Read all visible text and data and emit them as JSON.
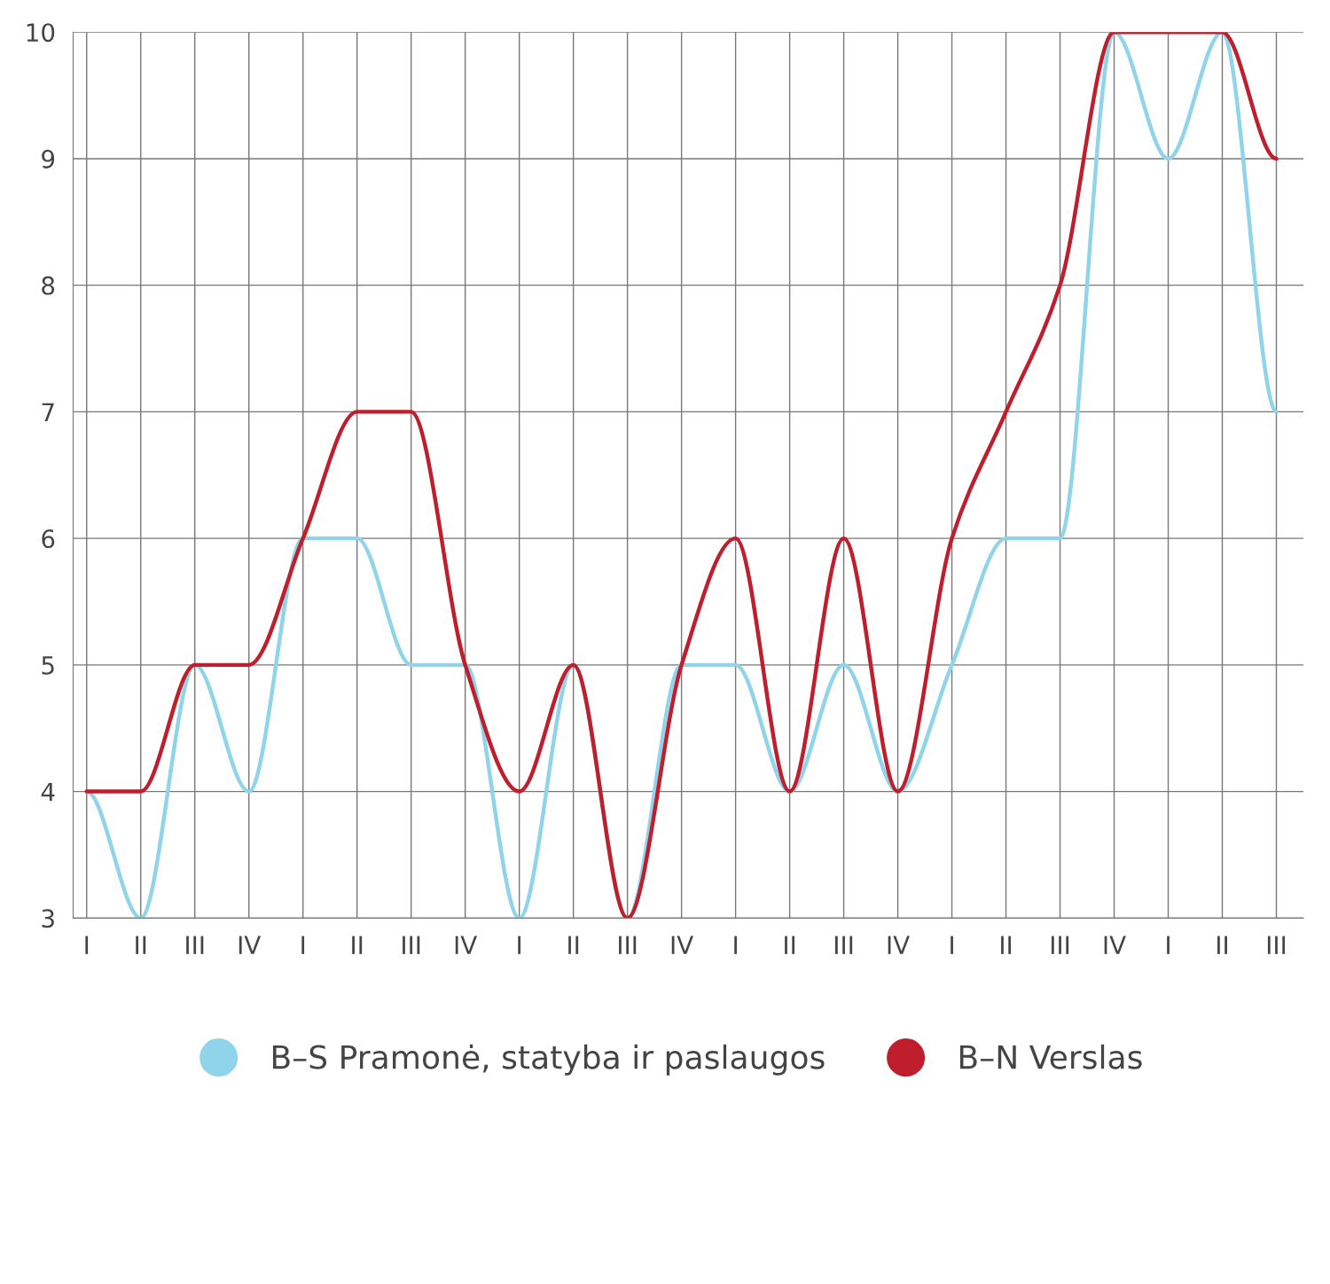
{
  "chart_data": {
    "type": "line",
    "categories": [
      "I",
      "II",
      "III",
      "IV",
      "I",
      "II",
      "III",
      "IV",
      "I",
      "II",
      "III",
      "IV",
      "I",
      "II",
      "III",
      "IV",
      "I",
      "II",
      "III",
      "IV",
      "I",
      "II",
      "III"
    ],
    "series": [
      {
        "name": "B–S Pramonė, statyba ir paslaugos",
        "color": "#8fd4ea",
        "values": [
          4,
          3,
          5,
          4,
          6,
          6,
          5,
          5,
          3,
          5,
          3,
          5,
          5,
          4,
          5,
          4,
          5,
          6,
          6,
          10,
          9,
          10,
          7
        ]
      },
      {
        "name": "B–N Verslas",
        "color": "#bf1e2d",
        "values": [
          4,
          4,
          5,
          5,
          6,
          7,
          7,
          5,
          4,
          5,
          3,
          5,
          6,
          4,
          6,
          4,
          6,
          7,
          8,
          10,
          10,
          10,
          9
        ]
      }
    ],
    "ylim": [
      3,
      10
    ],
    "yticks": [
      3,
      4,
      5,
      6,
      7,
      8,
      9,
      10
    ],
    "grid": true,
    "legend": "bottom",
    "marker": "none",
    "line_style": "solid"
  }
}
